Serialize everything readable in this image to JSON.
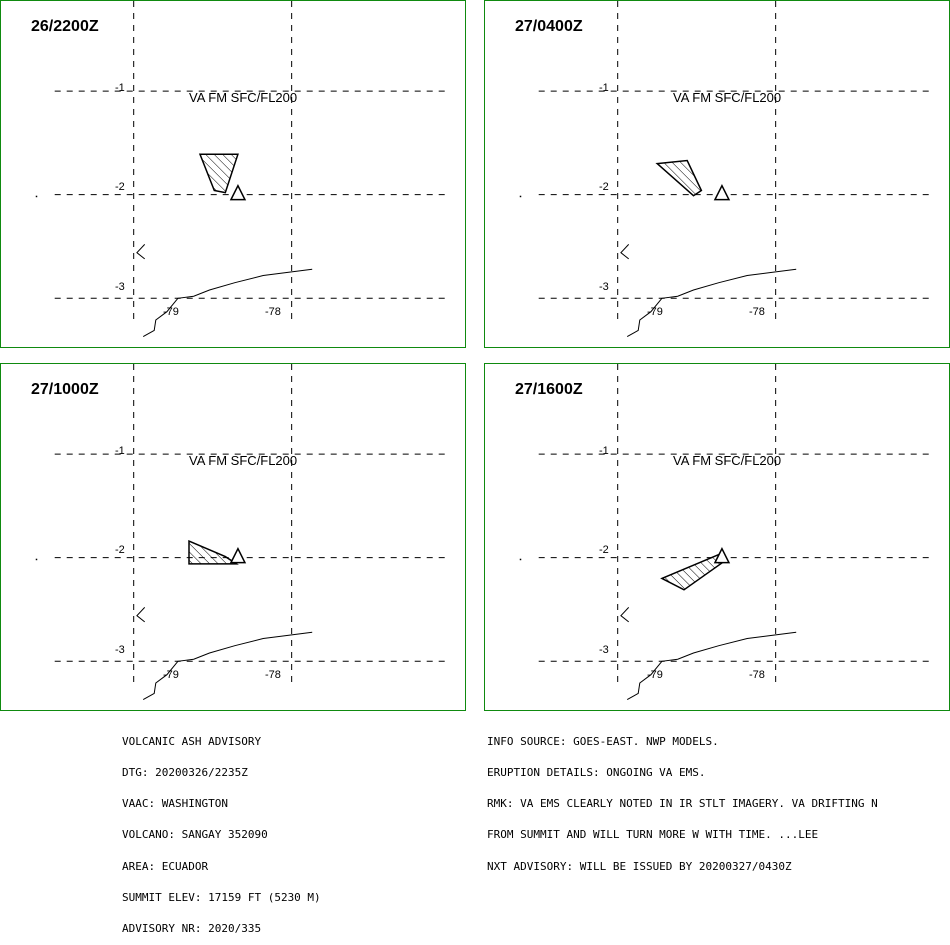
{
  "panels": [
    {
      "time": "26/2200Z",
      "layer": "VA FM SFC/FL200",
      "lat_labels": [
        "-1",
        "-2",
        "-3"
      ],
      "lon_labels": [
        "-79",
        "-78"
      ],
      "ash_polygon": [
        [
          -78.58,
          -1.61
        ],
        [
          -78.34,
          -1.61
        ],
        [
          -78.42,
          -1.98
        ],
        [
          -78.49,
          -1.96
        ]
      ]
    },
    {
      "time": "27/0400Z",
      "layer": "VA FM SFC/FL200",
      "lat_labels": [
        "-1",
        "-2",
        "-3"
      ],
      "lon_labels": [
        "-79",
        "-78"
      ],
      "ash_polygon": [
        [
          -78.75,
          -1.7
        ],
        [
          -78.56,
          -1.67
        ],
        [
          -78.47,
          -1.96
        ],
        [
          -78.52,
          -2.01
        ]
      ]
    },
    {
      "time": "27/1000Z",
      "layer": "VA FM SFC/FL200",
      "lat_labels": [
        "-1",
        "-2",
        "-3"
      ],
      "lon_labels": [
        "-79",
        "-78"
      ],
      "ash_polygon": [
        [
          -78.65,
          -1.84
        ],
        [
          -78.42,
          -1.99
        ],
        [
          -78.35,
          -2.06
        ],
        [
          -78.65,
          -2.06
        ]
      ]
    },
    {
      "time": "27/1600Z",
      "layer": "VA FM SFC/FL200",
      "lat_labels": [
        "-1",
        "-2",
        "-3"
      ],
      "lon_labels": [
        "-79",
        "-78"
      ],
      "ash_polygon": [
        [
          -78.72,
          -2.2
        ],
        [
          -78.36,
          -1.97
        ],
        [
          -78.33,
          -2.04
        ],
        [
          -78.58,
          -2.31
        ]
      ]
    }
  ],
  "map": {
    "lon_range": [
      -79.84,
      -76.89
    ],
    "lat_range": [
      -0.13,
      -3.49
    ],
    "volcano": [
      -78.34,
      -2.0
    ],
    "coast": [
      [
        -78.93,
        -2.48
      ],
      [
        -78.98,
        -2.56
      ],
      [
        -78.93,
        -2.62
      ]
    ],
    "border": [
      [
        -78.94,
        -3.37
      ],
      [
        -78.87,
        -3.31
      ],
      [
        -78.86,
        -3.21
      ],
      [
        -78.79,
        -3.13
      ],
      [
        -78.72,
        -3.0
      ],
      [
        -78.62,
        -2.98
      ],
      [
        -78.52,
        -2.92
      ],
      [
        -78.36,
        -2.85
      ],
      [
        -78.18,
        -2.78
      ],
      [
        -77.87,
        -2.72
      ]
    ]
  },
  "colors": {
    "border": "#0f8a0f",
    "ink": "#000000"
  },
  "footer_left": [
    "VOLCANIC ASH ADVISORY",
    "DTG: 20200326/2235Z",
    "VAAC: WASHINGTON",
    "VOLCANO: SANGAY 352090",
    "AREA: ECUADOR",
    "SUMMIT ELEV: 17159 FT (5230 M)",
    "ADVISORY NR: 2020/335"
  ],
  "footer_right": [
    "INFO SOURCE: GOES-EAST. NWP MODELS.",
    "ERUPTION DETAILS: ONGOING VA EMS.",
    "RMK: VA EMS CLEARLY NOTED IN IR STLT IMAGERY. VA DRIFTING N",
    "FROM SUMMIT AND WILL TURN MORE W WITH TIME. ...LEE",
    "NXT ADVISORY: WILL BE ISSUED BY 20200327/0430Z"
  ]
}
